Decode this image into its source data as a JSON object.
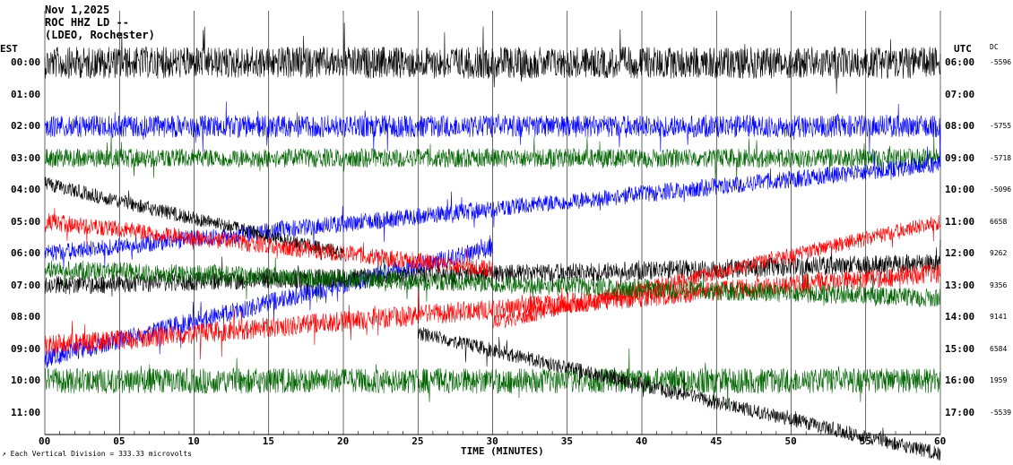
{
  "header": {
    "date": "Nov 1,2025",
    "station": "ROC HHZ LD --",
    "network": "(LDEO, Rochester)"
  },
  "left_tz": "EST",
  "right_tz": "UTC",
  "dc_header": "DC",
  "x_axis_label": "TIME (MINUTES)",
  "footnote": "Each Vertical Division =  333.33 microvolts",
  "colors": {
    "black": "#000000",
    "blue": "#0000ff",
    "green": "#006400",
    "red": "#ff0000",
    "grid": "#000000"
  },
  "chart_data": {
    "type": "line",
    "title": "",
    "xlabel": "TIME (MINUTES)",
    "xlim": [
      0,
      60
    ],
    "x_ticks": [
      "00",
      "05",
      "10",
      "15",
      "20",
      "25",
      "30",
      "35",
      "40",
      "45",
      "50",
      "55",
      "60"
    ],
    "grid": "vertical",
    "rows": [
      {
        "est": "00:00",
        "utc": "06:00",
        "dc": "-5596",
        "color": "black",
        "drift": [
          0,
          0
        ],
        "amp": 1.0
      },
      {
        "est": "01:00",
        "utc": "07:00",
        "dc": "",
        "color": "blue",
        "drift": [
          0,
          0
        ],
        "amp": 0
      },
      {
        "est": "02:00",
        "utc": "08:00",
        "dc": "-5755",
        "color": "blue",
        "drift": [
          0,
          0
        ],
        "amp": 0.7
      },
      {
        "est": "03:00",
        "utc": "09:00",
        "dc": "-5718",
        "color": "green",
        "drift": [
          0,
          0
        ],
        "amp": 0.6
      },
      {
        "est": "04:00",
        "utc": "10:00",
        "dc": "-5096",
        "color": "black",
        "drift": [
          0,
          0
        ],
        "amp": 0
      },
      {
        "est": "05:00",
        "utc": "11:00",
        "dc": "6658",
        "color": "red",
        "drift": [
          0,
          0
        ],
        "amp": 0
      },
      {
        "est": "06:00",
        "utc": "12:00",
        "dc": "9262",
        "color": "black",
        "drift": [
          0,
          0
        ],
        "amp": 0
      },
      {
        "est": "07:00",
        "utc": "13:00",
        "dc": "9356",
        "color": "green",
        "drift": [
          0,
          0
        ],
        "amp": 0
      },
      {
        "est": "08:00",
        "utc": "14:00",
        "dc": "9141",
        "color": "red",
        "drift": [
          0,
          0
        ],
        "amp": 0
      },
      {
        "est": "09:00",
        "utc": "15:00",
        "dc": "6584",
        "color": "black",
        "drift": [
          0,
          0
        ],
        "amp": 0
      },
      {
        "est": "10:00",
        "utc": "16:00",
        "dc": "1959",
        "color": "green",
        "drift": [
          0,
          0
        ],
        "amp": 0.8
      },
      {
        "est": "11:00",
        "utc": "17:00",
        "dc": "-5539",
        "color": "green",
        "drift": [
          0,
          0
        ],
        "amp": 0
      }
    ],
    "drift_traces": [
      {
        "color": "blue",
        "row_start": 6.0,
        "row_end": 3.2,
        "min_start": 0,
        "min_end": 60,
        "amp": 0.55
      },
      {
        "color": "blue",
        "row_start": 9.3,
        "row_end": 5.8,
        "min_start": 0,
        "min_end": 30,
        "amp": 0.6
      },
      {
        "color": "black",
        "row_start": 3.8,
        "row_end": 6.0,
        "min_start": 0,
        "min_end": 20,
        "amp": 0.45
      },
      {
        "color": "black",
        "row_start": 7.0,
        "row_end": 6.3,
        "min_start": 0,
        "min_end": 60,
        "amp": 0.6
      },
      {
        "color": "red",
        "row_start": 5.0,
        "row_end": 6.5,
        "min_start": 0,
        "min_end": 30,
        "amp": 0.55
      },
      {
        "color": "red",
        "row_start": 8.9,
        "row_end": 6.6,
        "min_start": 0,
        "min_end": 60,
        "amp": 0.65
      },
      {
        "color": "red",
        "row_start": 8.2,
        "row_end": 5.0,
        "min_start": 30,
        "min_end": 60,
        "amp": 0.5
      },
      {
        "color": "green",
        "row_start": 6.5,
        "row_end": 7.4,
        "min_start": 0,
        "min_end": 60,
        "amp": 0.6
      },
      {
        "color": "black",
        "row_start": 8.5,
        "row_end": 12.3,
        "min_start": 25,
        "min_end": 60,
        "amp": 0.45
      }
    ]
  }
}
